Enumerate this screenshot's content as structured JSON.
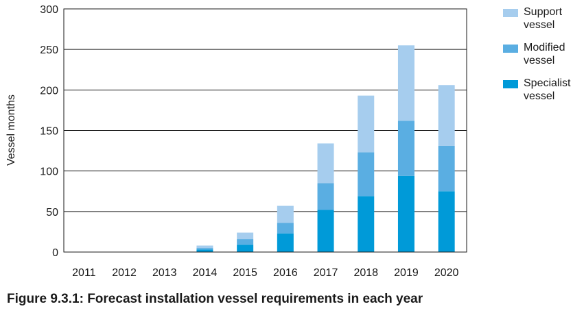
{
  "chart_data": {
    "type": "bar",
    "stacked": true,
    "categories": [
      "2011",
      "2012",
      "2013",
      "2014",
      "2015",
      "2016",
      "2017",
      "2018",
      "2019",
      "2020"
    ],
    "series": [
      {
        "name": "Specialist vessel",
        "color": "#009ad8",
        "values": [
          0,
          0,
          0,
          3,
          9,
          23,
          52,
          69,
          94,
          75
        ]
      },
      {
        "name": "Modified vessel",
        "color": "#5aaee2",
        "values": [
          0,
          0,
          0,
          2,
          7,
          13,
          33,
          54,
          68,
          56
        ]
      },
      {
        "name": "Support vessel",
        "color": "#a6cdee",
        "values": [
          0,
          0,
          0,
          3,
          8,
          21,
          49,
          70,
          93,
          75
        ]
      }
    ],
    "ylabel": "Vessel months",
    "xlabel": "",
    "ylim": [
      0,
      300
    ],
    "yticks": [
      0,
      50,
      100,
      150,
      200,
      250,
      300
    ],
    "grid": true,
    "legend_position": "top-right",
    "caption": "Figure 9.3.1: Forecast installation vessel requirements in each year"
  }
}
